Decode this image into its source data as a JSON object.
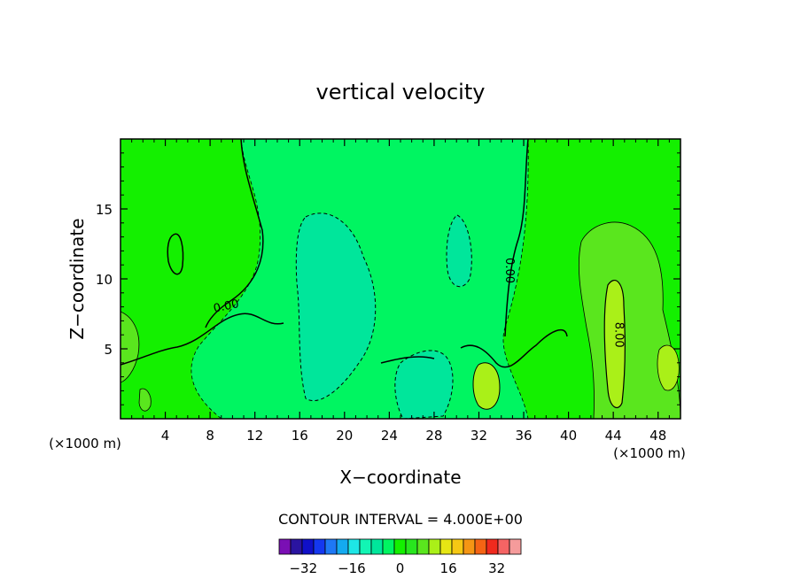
{
  "chart_data": {
    "type": "heatmap",
    "title": "vertical velocity",
    "xlabel": "X−coordinate",
    "ylabel": "Z−coordinate",
    "x_unit_left": "(×1000 m)",
    "x_unit_right": "(×1000 m)",
    "xlim": [
      0,
      50
    ],
    "ylim": [
      0,
      20
    ],
    "x_ticks": [
      4,
      8,
      12,
      16,
      20,
      24,
      28,
      32,
      36,
      40,
      44,
      48
    ],
    "x_tick_labels": [
      "4",
      "8",
      "12",
      "16",
      "20",
      "24",
      "28",
      "32",
      "36",
      "40",
      "44",
      "48"
    ],
    "y_ticks": [
      5,
      10,
      15
    ],
    "y_tick_labels": [
      "5",
      "10",
      "15"
    ],
    "contour_labels": [
      {
        "text": "0.00",
        "x": 9.5,
        "z": 7.8
      },
      {
        "text": "0.00",
        "x": 34.4,
        "z": 10.6
      },
      {
        "text": "8.00",
        "x": 44.2,
        "z": 6.0
      }
    ],
    "contour_interval_label": "CONTOUR INTERVAL = 4.000E+00",
    "colorbar": {
      "levels": [
        -40,
        -36,
        -32,
        -28,
        -24,
        -20,
        -16,
        -12,
        -8,
        -4,
        0,
        4,
        8,
        12,
        16,
        20,
        24,
        28,
        32,
        36,
        40
      ],
      "colors": [
        "#7a0fb4",
        "#2a14a0",
        "#1010c8",
        "#1438f0",
        "#1e78f5",
        "#14aaf0",
        "#1ee6e6",
        "#12f5b4",
        "#00e69b",
        "#00f561",
        "#14f000",
        "#28e61e",
        "#5ae61e",
        "#aaf018",
        "#e6e614",
        "#f5c814",
        "#f59614",
        "#f56414",
        "#f02a1e",
        "#f56464",
        "#f59b9b"
      ],
      "tick_values": [
        -32,
        -16,
        0,
        16,
        32
      ],
      "tick_labels": [
        "−32",
        "−16",
        "0",
        "16",
        "32"
      ]
    }
  }
}
